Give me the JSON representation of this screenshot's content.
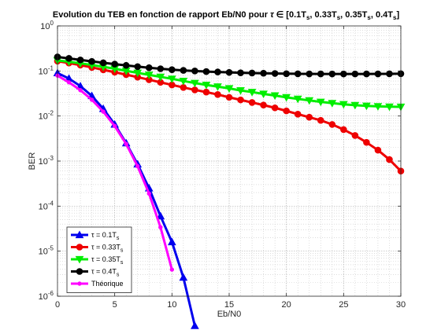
{
  "chart_data": {
    "type": "line",
    "title": "Evolution du TEB en fonction de rapport Eb/N0 pour τ ∈ [0.1T",
    "title_parts": {
      "prefix": "Evolution du TEB en fonction de rapport Eb/N0 pour ",
      "tau": "τ",
      "in": " ∈ [",
      "v1": "0.1T",
      "sep1": ", ",
      "v2": "0.33T",
      "sep2": ", ",
      "v3": "0.35T",
      "sep3": ", ",
      "v4": "0.4T",
      "end": "]",
      "sub": "s"
    },
    "xlabel": "Eb/N0",
    "ylabel": "BER",
    "xlim": [
      0,
      30
    ],
    "ylim_log10": [
      -6,
      0
    ],
    "y_scale": "log",
    "grid": true,
    "minor_grid": true,
    "x_ticks": [
      "0",
      "5",
      "10",
      "15",
      "20",
      "25",
      "30"
    ],
    "y_ticks": [
      {
        "base": "10",
        "exp": "0"
      },
      {
        "base": "10",
        "exp": "-1"
      },
      {
        "base": "10",
        "exp": "-2"
      },
      {
        "base": "10",
        "exp": "-3"
      },
      {
        "base": "10",
        "exp": "-4"
      },
      {
        "base": "10",
        "exp": "-5"
      },
      {
        "base": "10",
        "exp": "-6"
      }
    ],
    "legend_position": "bottom-left",
    "series": [
      {
        "name": "τ = 0.1T",
        "legend_prefix": "τ = 0.1T",
        "legend_sub": "s",
        "color": "#0000ee",
        "marker": "triangle",
        "x": [
          0,
          1,
          2,
          3,
          4,
          5,
          6,
          7,
          8,
          9,
          10,
          11,
          12
        ],
        "y": [
          0.09,
          0.068,
          0.046,
          0.028,
          0.0145,
          0.0065,
          0.0025,
          0.00085,
          0.00025,
          6e-05,
          1.6e-05,
          2.6e-06,
          2.2e-07
        ]
      },
      {
        "name": "τ = 0.33T",
        "legend_prefix": "τ = 0.33T",
        "legend_sub": "s",
        "color": "#ee0000",
        "marker": "circle",
        "x": [
          0,
          1,
          2,
          3,
          4,
          5,
          6,
          7,
          8,
          9,
          10,
          11,
          12,
          13,
          14,
          15,
          16,
          17,
          18,
          19,
          20,
          21,
          22,
          23,
          24,
          25,
          26,
          27,
          28,
          29,
          30
        ],
        "y": [
          0.165,
          0.15,
          0.135,
          0.12,
          0.106,
          0.094,
          0.083,
          0.073,
          0.064,
          0.056,
          0.049,
          0.043,
          0.038,
          0.034,
          0.03,
          0.026,
          0.0228,
          0.02,
          0.0175,
          0.0152,
          0.013,
          0.011,
          0.0094,
          0.008,
          0.0065,
          0.005,
          0.0037,
          0.0026,
          0.00175,
          0.00108,
          0.0006
        ]
      },
      {
        "name": "τ = 0.35T",
        "legend_prefix": "τ = 0.35T",
        "legend_sub": "s",
        "color": "#00ee00",
        "marker": "triangle-down",
        "x": [
          0,
          1,
          2,
          3,
          4,
          5,
          6,
          7,
          8,
          9,
          10,
          11,
          12,
          13,
          14,
          15,
          16,
          17,
          18,
          19,
          20,
          21,
          22,
          23,
          24,
          25,
          26,
          27,
          28,
          29,
          30
        ],
        "y": [
          0.172,
          0.16,
          0.148,
          0.136,
          0.124,
          0.112,
          0.101,
          0.091,
          0.082,
          0.074,
          0.067,
          0.06,
          0.054,
          0.049,
          0.045,
          0.041,
          0.037,
          0.034,
          0.031,
          0.0285,
          0.026,
          0.024,
          0.0222,
          0.0206,
          0.0193,
          0.0182,
          0.0174,
          0.0168,
          0.0164,
          0.0161,
          0.016
        ]
      },
      {
        "name": "τ = 0.4T",
        "legend_prefix": "τ = 0.4T",
        "legend_sub": "s",
        "color": "#000000",
        "marker": "circle",
        "x": [
          0,
          1,
          2,
          3,
          4,
          5,
          6,
          7,
          8,
          9,
          10,
          11,
          12,
          13,
          14,
          15,
          16,
          17,
          18,
          19,
          20,
          21,
          22,
          23,
          24,
          25,
          26,
          27,
          28,
          29,
          30
        ],
        "y": [
          0.205,
          0.19,
          0.176,
          0.163,
          0.152,
          0.142,
          0.133,
          0.125,
          0.118,
          0.112,
          0.107,
          0.103,
          0.1,
          0.097,
          0.095,
          0.093,
          0.091,
          0.09,
          0.089,
          0.088,
          0.087,
          0.0866,
          0.0862,
          0.086,
          0.0858,
          0.0858,
          0.0859,
          0.086,
          0.0862,
          0.0865,
          0.087
        ]
      },
      {
        "name": "Théorique",
        "legend_prefix": "Théorique",
        "legend_sub": "",
        "color": "#ff00ff",
        "marker": "point",
        "x": [
          0,
          1,
          2,
          3,
          4,
          5,
          6,
          7,
          8,
          9,
          10
        ],
        "y": [
          0.079,
          0.056,
          0.0375,
          0.023,
          0.0125,
          0.006,
          0.0024,
          0.00077,
          0.00019,
          3.4e-05,
          3.9e-06
        ]
      }
    ]
  }
}
